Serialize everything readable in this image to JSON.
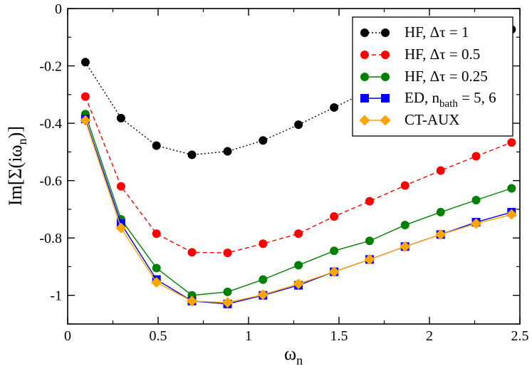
{
  "chart_data": {
    "type": "line",
    "title": "",
    "xlabel": "ω",
    "xlabel_sub": "n",
    "ylabel_parts": {
      "pre": "Im[Σ(iω",
      "sub": "n",
      "post": ")]"
    },
    "xlim": [
      0,
      2.5
    ],
    "ylim": [
      -1.1,
      0
    ],
    "xticks": [
      0,
      0.5,
      1,
      1.5,
      2,
      2.5
    ],
    "xtick_labels": [
      "0",
      "0.5",
      "1",
      "1.5",
      "2",
      "2.5"
    ],
    "yticks": [
      0,
      -0.2,
      -0.4,
      -0.6,
      -0.8,
      -1
    ],
    "ytick_labels": [
      "0",
      "-0.2",
      "-0.4",
      "-0.6",
      "-0.8",
      "-1"
    ],
    "grid": false,
    "legend_position": "top-right",
    "x": [
      0.098,
      0.295,
      0.491,
      0.687,
      0.884,
      1.08,
      1.276,
      1.473,
      1.669,
      1.865,
      2.062,
      2.258,
      2.454
    ],
    "series": [
      {
        "name": "HF, Δτ = 1",
        "color": "#000000",
        "marker": "circle",
        "dash": "dotted",
        "values": [
          -0.187,
          -0.382,
          -0.478,
          -0.51,
          -0.498,
          -0.46,
          -0.405,
          -0.345,
          -0.285,
          -0.225,
          -0.168,
          -0.118,
          -0.073
        ]
      },
      {
        "name": "HF, Δτ = 0.5",
        "color": "#ff0000",
        "marker": "circle",
        "dash": "dashed",
        "values": [
          -0.307,
          -0.62,
          -0.785,
          -0.85,
          -0.852,
          -0.82,
          -0.785,
          -0.725,
          -0.672,
          -0.617,
          -0.565,
          -0.515,
          -0.467
        ]
      },
      {
        "name": "HF, Δτ = 0.25",
        "color": "#008000",
        "marker": "circle",
        "dash": "solid",
        "values": [
          -0.368,
          -0.735,
          -0.905,
          -1.0,
          -0.988,
          -0.945,
          -0.895,
          -0.845,
          -0.81,
          -0.755,
          -0.71,
          -0.668,
          -0.627
        ]
      },
      {
        "name": "ED, n_bath = 5, 6",
        "color": "#0000ff",
        "marker": "square",
        "dash": "solid",
        "values": [
          -0.385,
          -0.75,
          -0.945,
          -1.02,
          -1.03,
          -1.0,
          -0.965,
          -0.918,
          -0.875,
          -0.83,
          -0.788,
          -0.745,
          -0.71
        ]
      },
      {
        "name": "CT-AUX",
        "color": "#ffa500",
        "marker": "diamond",
        "dash": "solid",
        "values": [
          -0.39,
          -0.765,
          -0.955,
          -1.02,
          -1.025,
          -0.998,
          -0.96,
          -0.918,
          -0.875,
          -0.83,
          -0.788,
          -0.75,
          -0.718
        ]
      }
    ],
    "legend": {
      "entries": [
        {
          "prefix": "HF, Δτ = 1",
          "sub": "",
          "suffix": ""
        },
        {
          "prefix": "HF, Δτ = 0.5",
          "sub": "",
          "suffix": ""
        },
        {
          "prefix": "HF, Δτ = 0.25",
          "sub": "",
          "suffix": ""
        },
        {
          "prefix": "ED, n",
          "sub": "bath",
          "suffix": " = 5, 6"
        },
        {
          "prefix": "CT-AUX",
          "sub": "",
          "suffix": ""
        }
      ]
    }
  }
}
